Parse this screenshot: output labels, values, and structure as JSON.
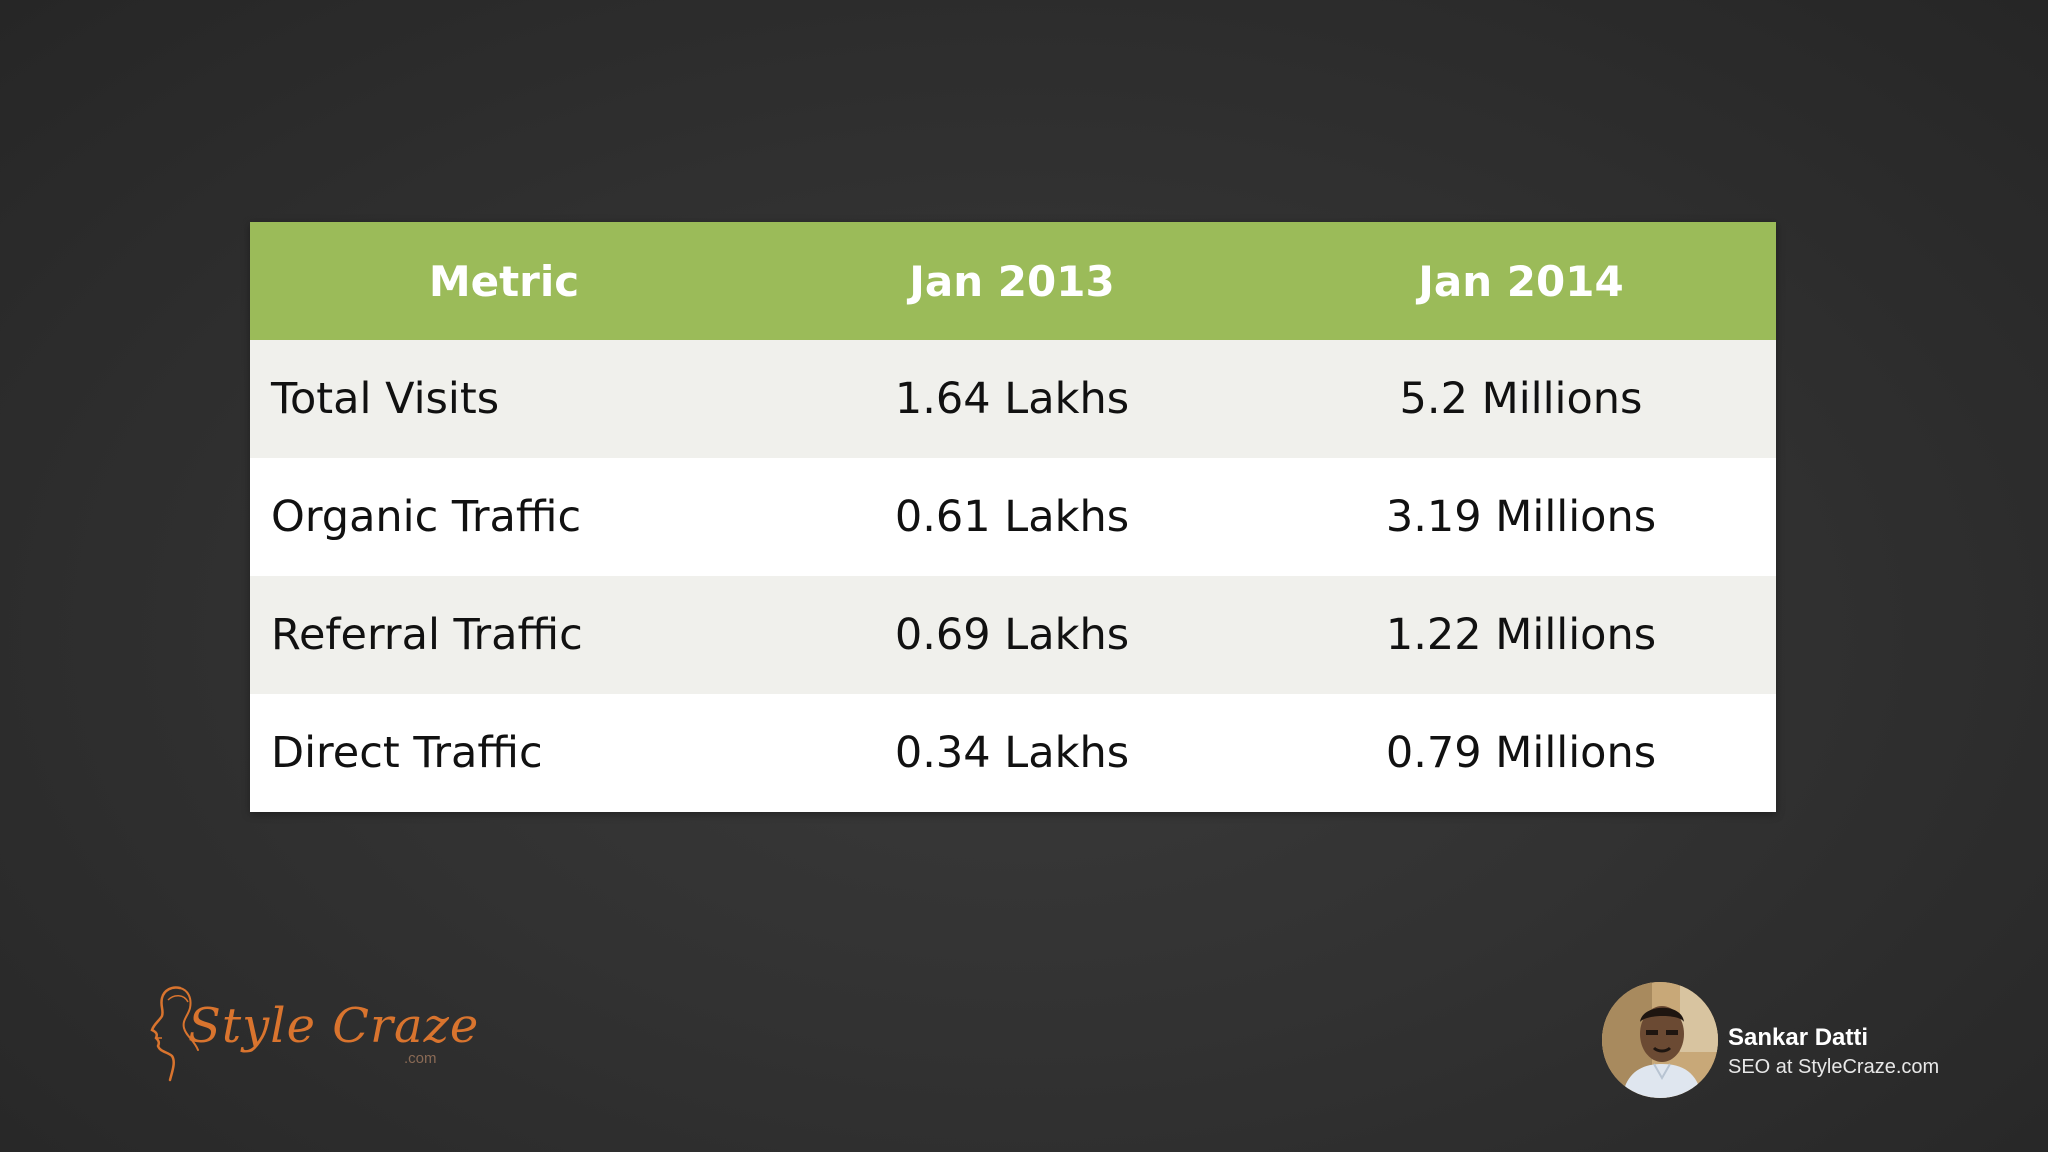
{
  "table": {
    "headers": [
      "Metric",
      "Jan 2013",
      "Jan 2014"
    ],
    "rows": [
      {
        "metric": "Total Visits",
        "jan2013": "1.64 Lakhs",
        "jan2014": "5.2 Millions"
      },
      {
        "metric": "Organic Traffic",
        "jan2013": "0.61 Lakhs",
        "jan2014": "3.19 Millions"
      },
      {
        "metric": "Referral Traffic",
        "jan2013": "0.69 Lakhs",
        "jan2014": "1.22 Millions"
      },
      {
        "metric": "Direct Traffic",
        "jan2013": "0.34 Lakhs",
        "jan2014": "0.79 Millions"
      }
    ]
  },
  "logo": {
    "name": "Style Craze",
    "suffix": ".com",
    "icon": "woman-profile-icon"
  },
  "presenter": {
    "name": "Sankar Datti",
    "title": "SEO at StyleCraze.com",
    "avatar_icon": "presenter-avatar"
  },
  "colors": {
    "header_bg": "#9bbb59",
    "row_alt_bg": "#f0f0ec",
    "row_bg": "#ffffff",
    "logo_orange": "#d9742e"
  }
}
